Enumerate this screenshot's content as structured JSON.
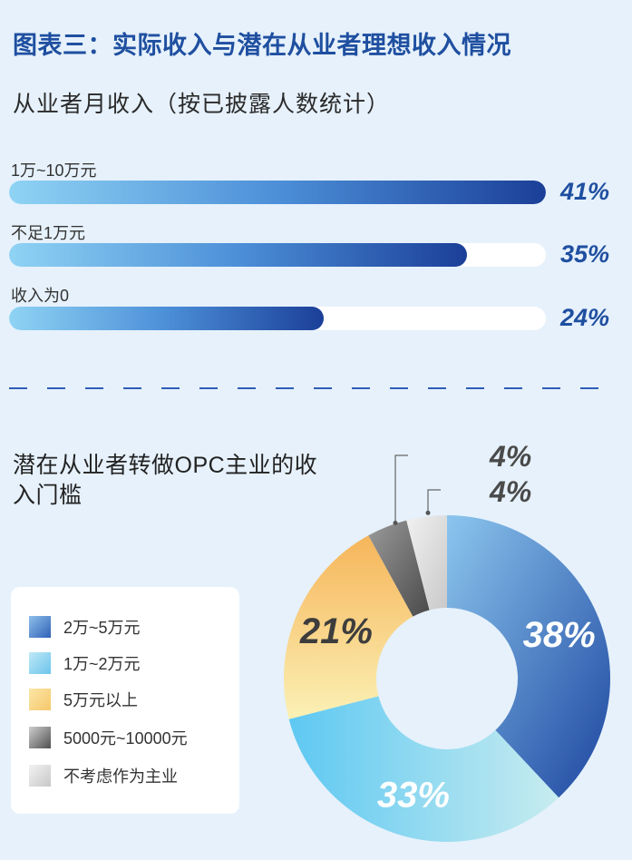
{
  "page_title": "图表三：实际收入与潜在从业者理想收入情况",
  "bar_section": {
    "title": "从业者月收入（按已披露人数统计）"
  },
  "donut_section": {
    "title": "潜在从业者转做OPC主业的收入门槛"
  },
  "chart_data": [
    {
      "type": "bar",
      "orientation": "horizontal",
      "title": "从业者月收入（按已披露人数统计）",
      "categories": [
        "1万~10万元",
        "不足1万元",
        "收入为0"
      ],
      "values": [
        41,
        35,
        24
      ],
      "value_labels": [
        "41%",
        "35%",
        "24%"
      ],
      "unit": "%",
      "colors": {
        "gradient_start": "#8fd3f4",
        "gradient_end": "#1b3f98",
        "track": "#ffffff",
        "value_text": "#1f4fa0"
      }
    },
    {
      "type": "pie",
      "donut": true,
      "title": "潜在从业者转做OPC主业的收入门槛",
      "categories": [
        "2万~5万元",
        "1万~2万元",
        "5万元以上",
        "5000元~10000元",
        "不考虑作为主业"
      ],
      "values": [
        38,
        33,
        21,
        4,
        4
      ],
      "value_labels": [
        "38%",
        "33%",
        "21%",
        "4%",
        "4%"
      ],
      "legend_position": "left",
      "colors": [
        "#2f62b8",
        "#6cc4ec",
        "#f6c76a",
        "#707070",
        "#d4d4d4"
      ]
    }
  ]
}
